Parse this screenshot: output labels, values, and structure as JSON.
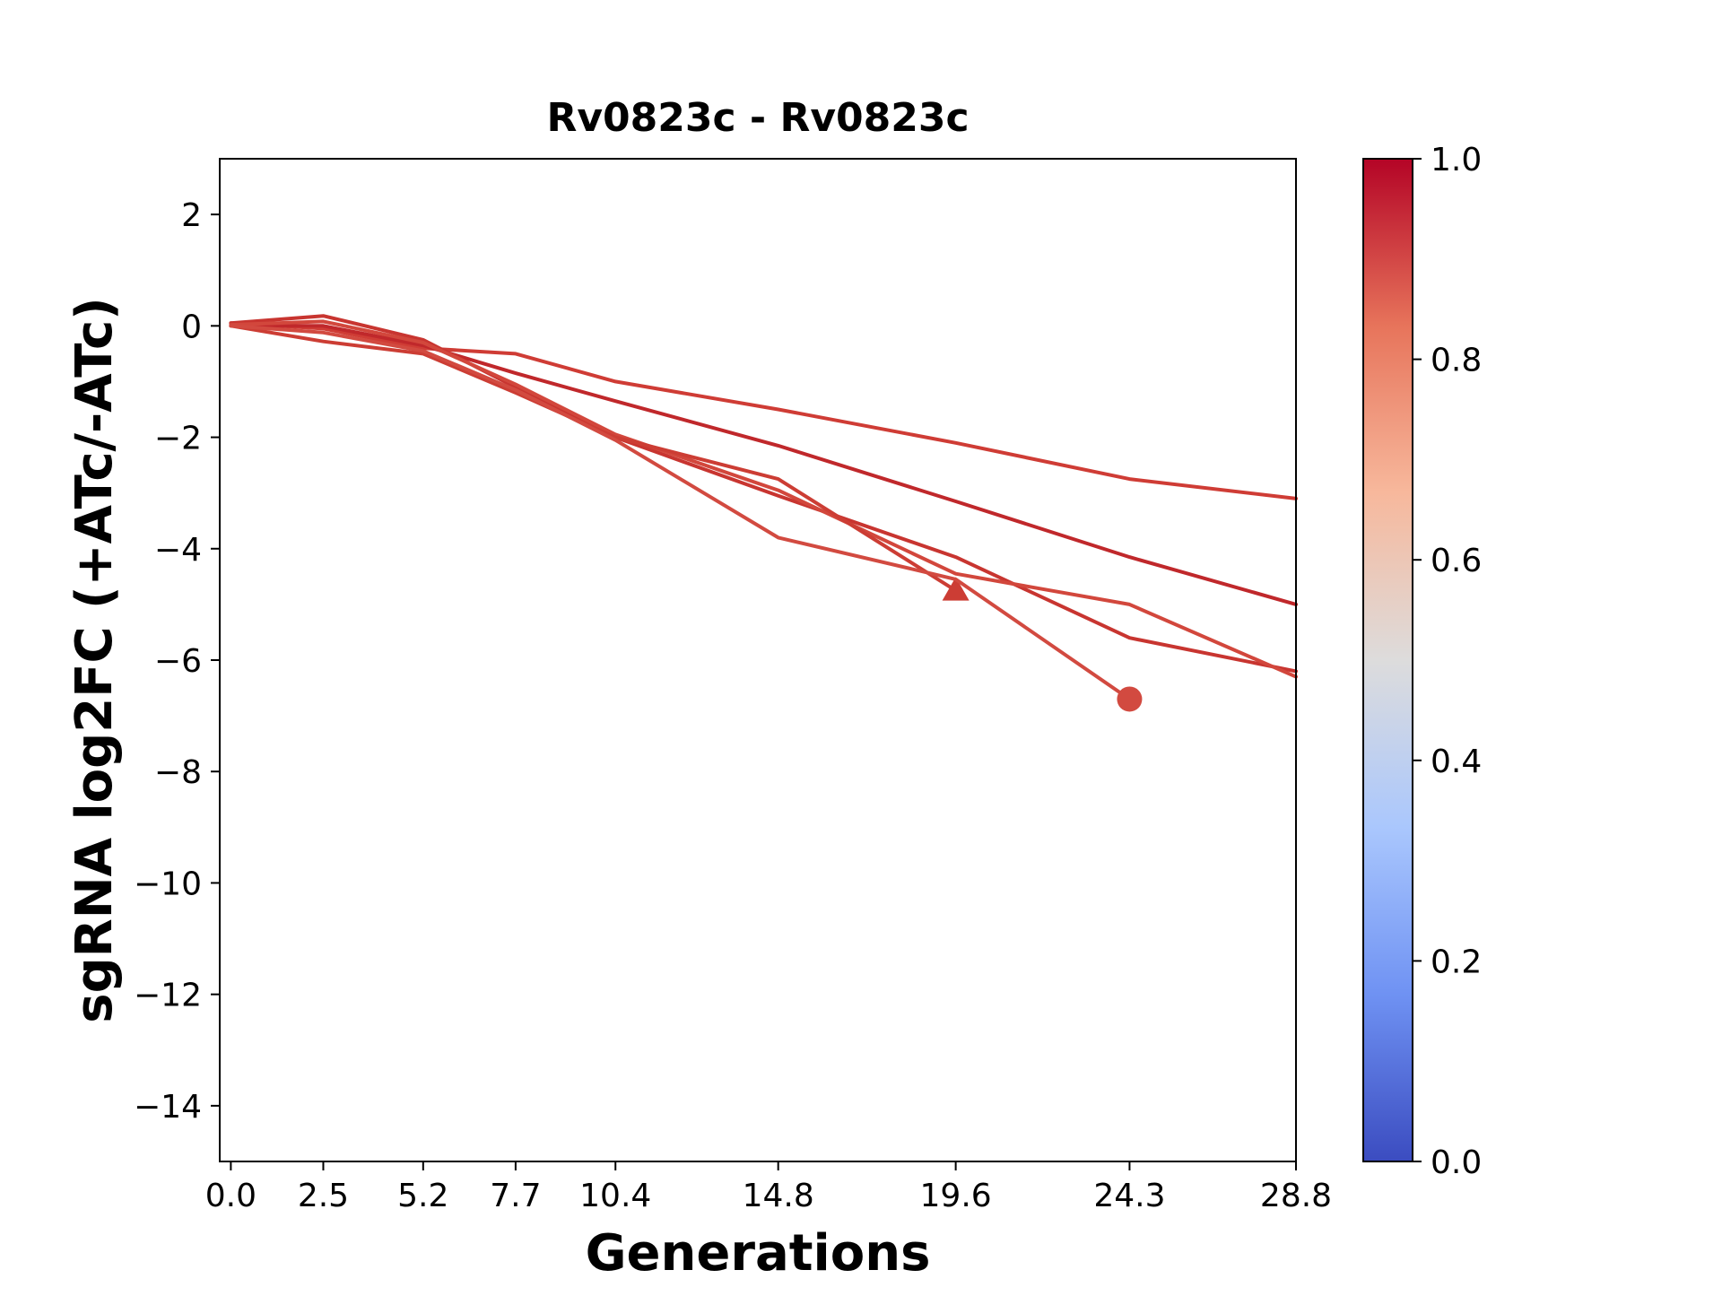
{
  "chart_data": {
    "type": "line",
    "title": "Rv0823c - Rv0823c",
    "xlabel": "Generations",
    "ylabel": "sgRNA log2FC (+ATc/-ATc)",
    "xlim": [
      -0.3,
      28.8
    ],
    "ylim": [
      -15,
      3
    ],
    "x_ticks": [
      0.0,
      2.5,
      5.2,
      7.7,
      10.4,
      14.8,
      19.6,
      24.3,
      28.8
    ],
    "x_tick_labels": [
      "0.0",
      "2.5",
      "5.2",
      "7.7",
      "10.4",
      "14.8",
      "19.6",
      "24.3",
      "28.8"
    ],
    "y_ticks": [
      2,
      0,
      -2,
      -4,
      -6,
      -8,
      -10,
      -12,
      -14
    ],
    "y_tick_labels": [
      "2",
      "0",
      "−2",
      "−4",
      "−6",
      "−8",
      "−10",
      "−12",
      "−14"
    ],
    "grid": false,
    "legend": "none",
    "colorbar": {
      "range": [
        0.0,
        1.0
      ],
      "ticks": [
        0.0,
        0.2,
        0.4,
        0.6,
        0.8,
        1.0
      ],
      "tick_labels": [
        "0.0",
        "0.2",
        "0.4",
        "0.6",
        "0.8",
        "1.0"
      ],
      "colormap": "coolwarm",
      "colors": [
        "#3b4cc0",
        "#6f92f3",
        "#aac7fd",
        "#dddcdc",
        "#f7b89c",
        "#e7745b",
        "#b40426"
      ]
    },
    "series": [
      {
        "x": [
          0.0,
          2.5,
          5.2,
          7.7,
          10.4,
          14.8,
          19.6,
          24.3,
          28.8
        ],
        "y": [
          0.05,
          -0.05,
          -0.4,
          -0.5,
          -1.0,
          -1.5,
          -2.1,
          -2.75,
          -3.1
        ],
        "color": "#cf3c35",
        "marker": "none"
      },
      {
        "x": [
          0.0,
          2.5,
          5.2,
          7.7,
          10.4,
          14.8,
          19.6,
          24.3,
          28.8
        ],
        "y": [
          0.0,
          0.0,
          -0.35,
          -0.85,
          -1.35,
          -2.15,
          -3.15,
          -4.15,
          -5.0
        ],
        "color": "#c0282b",
        "marker": "none"
      },
      {
        "x": [
          0.0,
          2.5,
          5.2,
          7.7,
          10.4,
          14.8,
          19.6,
          24.3,
          28.8
        ],
        "y": [
          0.05,
          0.18,
          -0.25,
          -1.1,
          -2.0,
          -3.05,
          -4.15,
          -5.6,
          -6.2
        ],
        "color": "#c83530",
        "marker": "none"
      },
      {
        "x": [
          0.0,
          2.5,
          5.2,
          7.7,
          10.4,
          14.8,
          19.6,
          24.3,
          28.8
        ],
        "y": [
          0.02,
          0.08,
          -0.3,
          -1.05,
          -1.95,
          -2.95,
          -4.45,
          -5.0,
          -6.3
        ],
        "color": "#d2473c",
        "marker": "none"
      },
      {
        "x": [
          0.0,
          2.5,
          5.2,
          7.7,
          10.4,
          14.8,
          19.6
        ],
        "y": [
          0.0,
          -0.28,
          -0.5,
          -1.2,
          -2.0,
          -2.75,
          -4.75
        ],
        "color": "#cc3d34",
        "marker": "triangle"
      },
      {
        "x": [
          0.0,
          2.5,
          5.2,
          7.7,
          10.4,
          14.8,
          19.6,
          24.3
        ],
        "y": [
          0.0,
          -0.12,
          -0.45,
          -1.15,
          -2.05,
          -3.8,
          -4.55,
          -6.7
        ],
        "color": "#d24a40",
        "marker": "circle"
      }
    ]
  }
}
